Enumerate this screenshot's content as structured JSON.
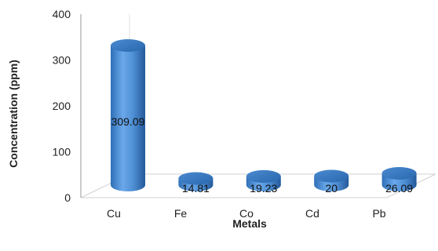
{
  "chart_data": {
    "type": "bar",
    "style": "3d-cylinder",
    "title": "",
    "xlabel": "Metals",
    "ylabel": "Concentration (ppm)",
    "categories": [
      "Cu",
      "Fe",
      "Co",
      "Cd",
      "Pb"
    ],
    "values": [
      309.09,
      14.81,
      19.23,
      20,
      26.09
    ],
    "data_labels": [
      "309.09",
      "14.81",
      "19.23",
      "20",
      "26.09"
    ],
    "ylim": [
      0,
      400
    ],
    "yticks": [
      "0",
      "100",
      "200",
      "300",
      "400"
    ],
    "grid": false,
    "legend": "none",
    "bar_color": "#4f8fd4"
  }
}
